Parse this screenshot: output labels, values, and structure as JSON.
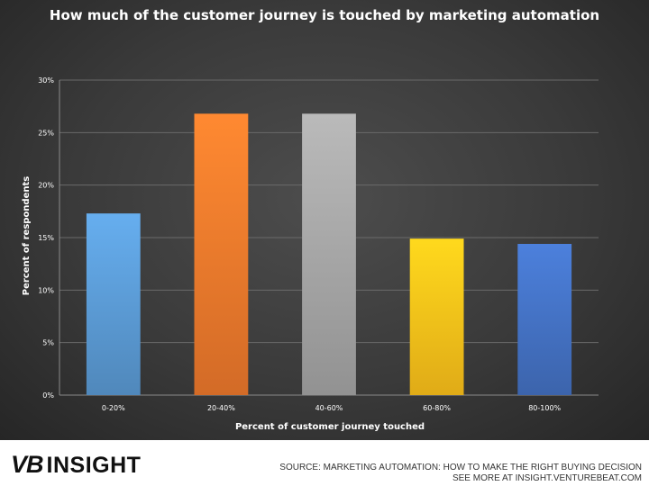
{
  "chart_data": {
    "type": "bar",
    "title": "How much of the customer journey is touched by marketing automation",
    "xlabel": "Percent of customer journey touched",
    "ylabel": "Percent of respondents",
    "categories": [
      "0-20%",
      "20-40%",
      "40-60%",
      "60-80%",
      "80-100%"
    ],
    "values": [
      17.3,
      26.8,
      26.8,
      14.9,
      14.4
    ],
    "ylim": [
      0,
      30
    ],
    "yticks": [
      "0%",
      "5%",
      "10%",
      "15%",
      "20%",
      "25%",
      "30%"
    ],
    "grid": true,
    "legend": "none",
    "colors": [
      "#5b9bd5",
      "#f07a2c",
      "#a6a6a6",
      "#ffc21a",
      "#4472c4"
    ]
  },
  "footer": {
    "brand_vb": "VB",
    "brand_insight": "INSIGHT",
    "source_line1": "SOURCE: MARKETING AUTOMATION: HOW TO MAKE THE RIGHT BUYING DECISION",
    "source_line2": "SEE MORE AT INSIGHT.VENTUREBEAT.COM"
  }
}
